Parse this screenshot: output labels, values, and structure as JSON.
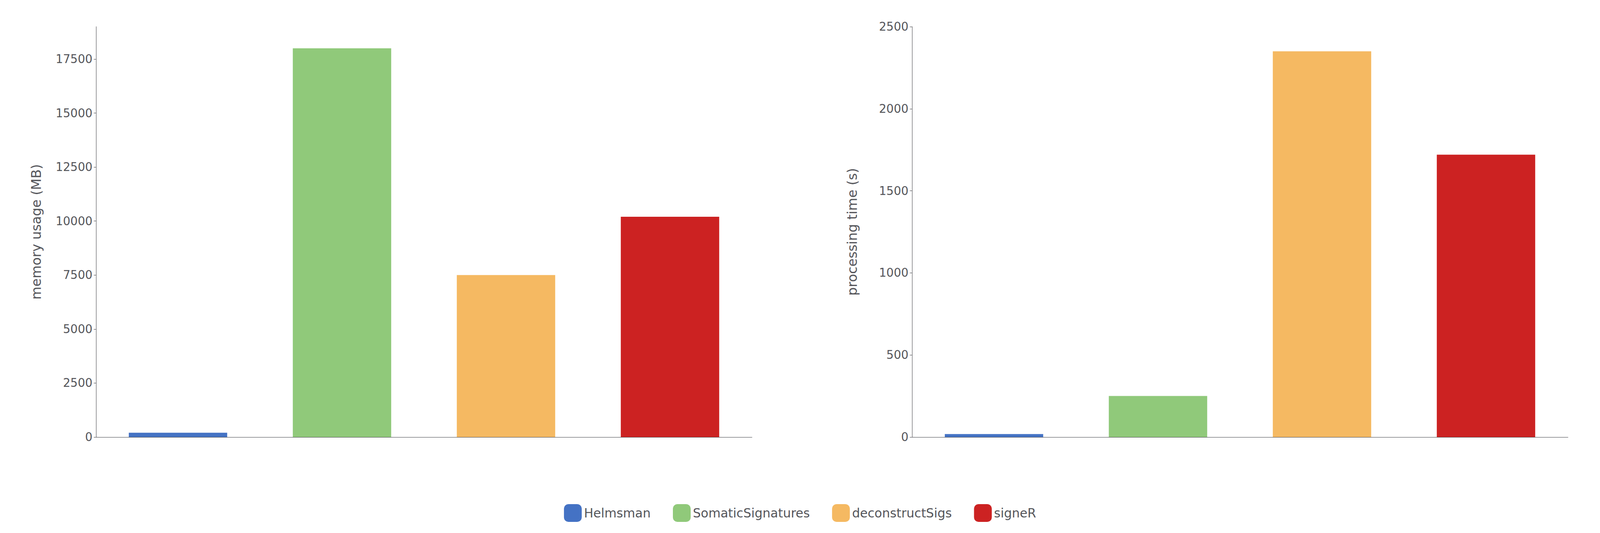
{
  "chart_data": [
    {
      "type": "bar",
      "ylabel": "memory usage (MB)",
      "categories": [
        "Helmsman",
        "SomaticSignatures",
        "deconstructSigs",
        "signeR"
      ],
      "values": [
        200,
        18000,
        7500,
        10200
      ],
      "colors": [
        "#4472c4",
        "#90c97a",
        "#f5b962",
        "#cc2222"
      ],
      "ylim": [
        0,
        19000
      ],
      "yticks": [
        0,
        2500,
        5000,
        7500,
        10000,
        12500,
        15000,
        17500
      ],
      "grid": false,
      "tick_labels": "y",
      "legend": "bottom"
    },
    {
      "type": "bar",
      "ylabel": "processing time (s)",
      "categories": [
        "Helmsman",
        "SomaticSignatures",
        "deconstructSigs",
        "signeR"
      ],
      "values": [
        18,
        250,
        2350,
        1720
      ],
      "colors": [
        "#4472c4",
        "#90c97a",
        "#f5b962",
        "#cc2222"
      ],
      "ylim": [
        0,
        2500
      ],
      "yticks": [
        0,
        500,
        1000,
        1500,
        2000,
        2500
      ],
      "grid": false,
      "tick_labels": "y",
      "legend": "bottom"
    }
  ]
}
